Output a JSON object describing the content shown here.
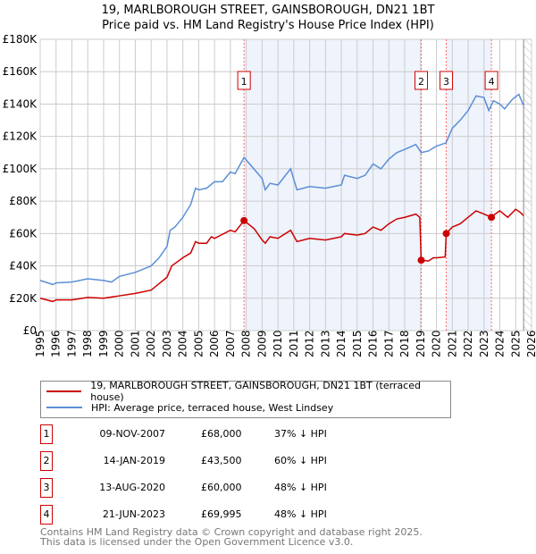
{
  "title": "19, MARLBOROUGH STREET, GAINSBOROUGH, DN21 1BT",
  "subtitle": "Price paid vs. HM Land Registry's House Price Index (HPI)",
  "chart_data": {
    "type": "line",
    "title": "19, MARLBOROUGH STREET, GAINSBOROUGH, DN21 1BT",
    "subtitle": "Price paid vs. HM Land Registry's House Price Index (HPI)",
    "xlim": [
      1995,
      2026
    ],
    "ylim": [
      0,
      180000
    ],
    "x_ticks": [
      "1995",
      "1996",
      "1997",
      "1998",
      "1999",
      "2000",
      "2001",
      "2002",
      "2003",
      "2004",
      "2005",
      "2006",
      "2007",
      "2008",
      "2009",
      "2010",
      "2011",
      "2012",
      "2013",
      "2014",
      "2015",
      "2016",
      "2017",
      "2018",
      "2019",
      "2020",
      "2021",
      "2022",
      "2023",
      "2024",
      "2025",
      "2026"
    ],
    "y_ticks": [
      "£0",
      "£20K",
      "£40K",
      "£60K",
      "£80K",
      "£100K",
      "£120K",
      "£140K",
      "£160K",
      "£180K"
    ],
    "grid": true,
    "series": [
      {
        "name": "19, MARLBOROUGH STREET, GAINSBOROUGH, DN21 1BT (terraced house)",
        "color": "#cc0000",
        "x": [
          1995,
          1995.8,
          1996,
          1997,
          1998,
          1999,
          2000,
          2001,
          2002,
          2002.5,
          2003,
          2003.3,
          2004,
          2004.5,
          2004.8,
          2005,
          2005.5,
          2005.8,
          2006,
          2007,
          2007.3,
          2007.86,
          2008.5,
          2009,
          2009.2,
          2009.5,
          2010,
          2010.8,
          2011.2,
          2012,
          2013,
          2014,
          2014.2,
          2015,
          2015.5,
          2016,
          2016.5,
          2017,
          2017.5,
          2018,
          2018.7,
          2018.95,
          2019.04,
          2019.5,
          2019.8,
          2020,
          2020.55,
          2020.62,
          2021,
          2021.5,
          2022,
          2022.5,
          2023,
          2023.47,
          2023.7,
          2024,
          2024.5,
          2025,
          2025.3,
          2025.5
        ],
        "y": [
          20000,
          18000,
          19000,
          19000,
          20500,
          20000,
          21500,
          23000,
          25000,
          29000,
          33000,
          40000,
          45000,
          48000,
          55000,
          54000,
          54000,
          58000,
          57000,
          62000,
          61000,
          68000,
          63000,
          56000,
          54000,
          58000,
          57000,
          62000,
          55000,
          57000,
          56000,
          58000,
          60000,
          59000,
          60000,
          64000,
          62000,
          66000,
          69000,
          70000,
          72000,
          70000,
          43500,
          43000,
          45000,
          45000,
          45500,
          60000,
          64000,
          66000,
          70000,
          74000,
          72000,
          69995,
          72000,
          74000,
          70000,
          75000,
          73000,
          71000
        ]
      },
      {
        "name": "HPI: Average price, terraced house, West Lindsey",
        "color": "#5b8fd6",
        "x": [
          1995,
          1995.8,
          1996,
          1997,
          1998,
          1999,
          1999.5,
          2000,
          2001,
          2002,
          2002.5,
          2003,
          2003.2,
          2003.5,
          2004,
          2004.5,
          2004.8,
          2005,
          2005.5,
          2006,
          2006.5,
          2007,
          2007.3,
          2007.86,
          2008.3,
          2009,
          2009.2,
          2009.5,
          2010,
          2010.8,
          2011.2,
          2012,
          2013,
          2014,
          2014.2,
          2015,
          2015.5,
          2016,
          2016.5,
          2017,
          2017.5,
          2018,
          2018.7,
          2019.04,
          2019.5,
          2020,
          2020.6,
          2021,
          2021.5,
          2022,
          2022.5,
          2023,
          2023.3,
          2023.6,
          2024,
          2024.3,
          2024.8,
          2025.2,
          2025.5
        ],
        "y": [
          31000,
          28500,
          29500,
          30000,
          32000,
          31000,
          30000,
          33500,
          36000,
          40000,
          45000,
          52000,
          62000,
          64000,
          70000,
          78000,
          88000,
          87000,
          88000,
          92000,
          92000,
          98000,
          97000,
          107000,
          102000,
          94000,
          87000,
          91000,
          90000,
          100000,
          87000,
          89000,
          88000,
          90000,
          96000,
          94000,
          96000,
          103000,
          100000,
          106000,
          110000,
          112000,
          115000,
          110000,
          111000,
          114000,
          116000,
          125000,
          130000,
          136000,
          145000,
          144000,
          136000,
          142000,
          140000,
          137000,
          143000,
          146000,
          139000
        ]
      }
    ],
    "sales": [
      {
        "label": "1",
        "x": 2007.86,
        "date": "09-NOV-2007",
        "price": "£68,000",
        "price_value": 68000,
        "hpi": "37% ↓ HPI"
      },
      {
        "label": "2",
        "x": 2019.04,
        "date": "14-JAN-2019",
        "price": "£43,500",
        "price_value": 43500,
        "hpi": "60% ↓ HPI"
      },
      {
        "label": "3",
        "x": 2020.62,
        "date": "13-AUG-2020",
        "price": "£60,000",
        "price_value": 60000,
        "hpi": "48% ↓ HPI"
      },
      {
        "label": "4",
        "x": 2023.47,
        "date": "21-JUN-2023",
        "price": "£69,995",
        "price_value": 69995,
        "hpi": "48% ↓ HPI"
      }
    ],
    "shaded_ranges": [
      [
        2007.86,
        2019.04
      ],
      [
        2020.62,
        2023.47
      ]
    ],
    "forecast_start": 2025.5
  },
  "legend": {
    "property": "19, MARLBOROUGH STREET, GAINSBOROUGH, DN21 1BT (terraced house)",
    "hpi": "HPI: Average price, terraced house, West Lindsey"
  },
  "footer": {
    "line1": "Contains HM Land Registry data © Crown copyright and database right 2025.",
    "line2": "This data is licensed under the Open Government Licence v3.0."
  }
}
